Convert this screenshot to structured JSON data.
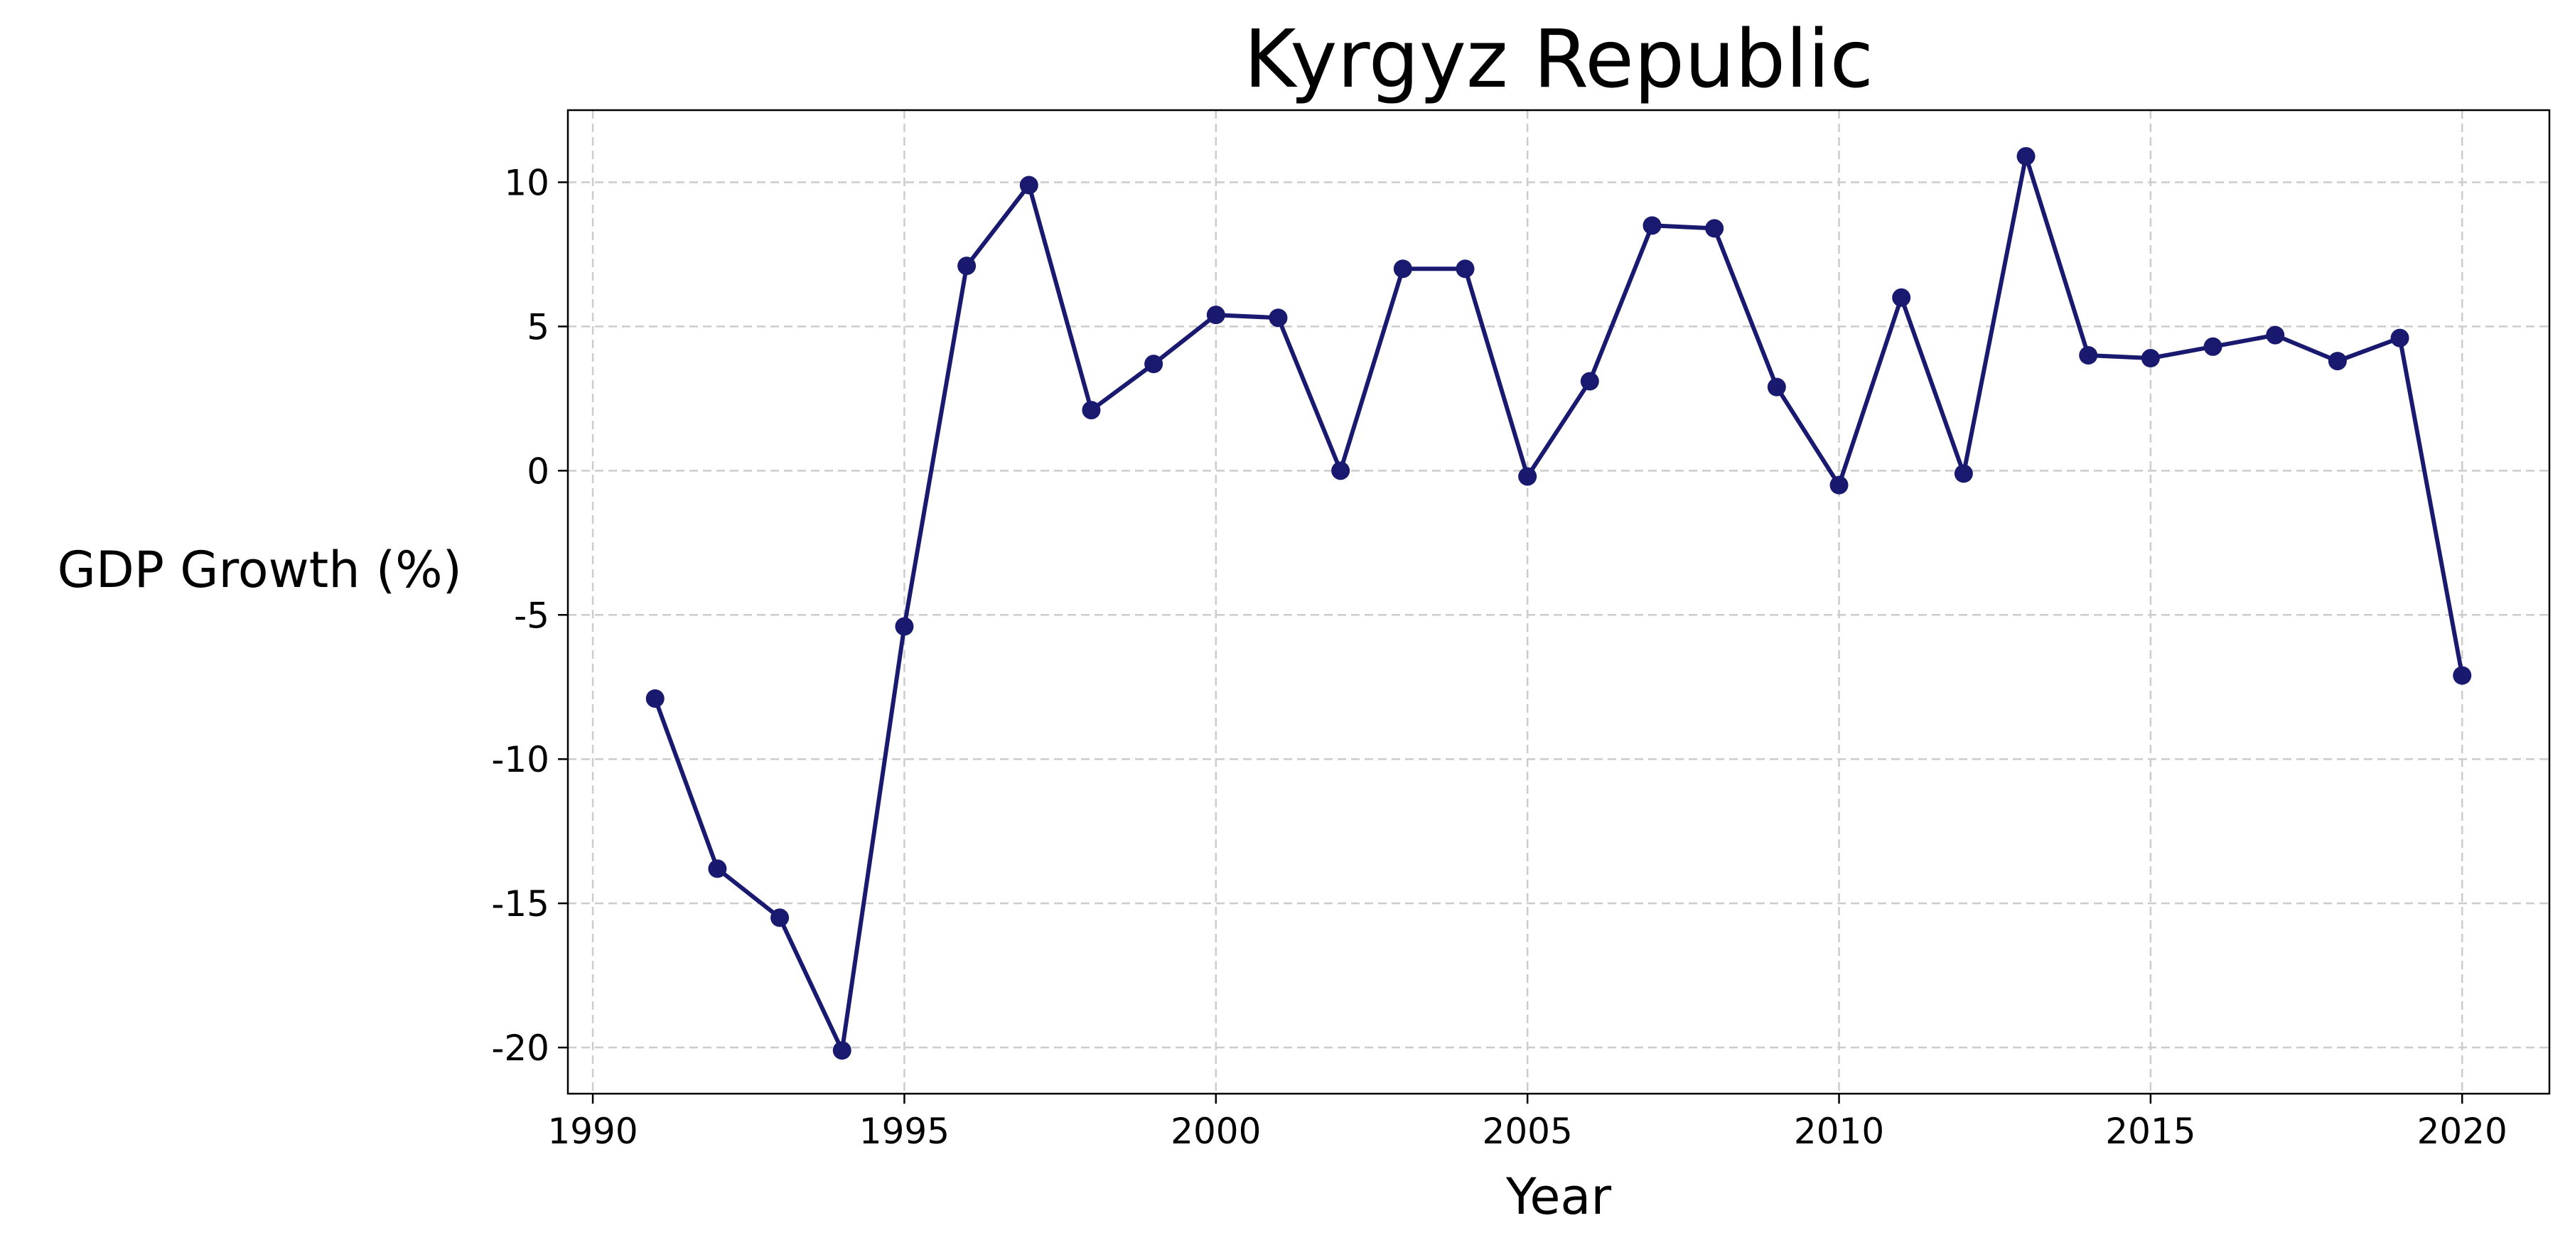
{
  "chart_data": {
    "type": "line",
    "title": "Kyrgyz Republic",
    "xlabel": "Year",
    "ylabel": "GDP Growth (%)",
    "xlim": [
      1989.6,
      2021.4
    ],
    "ylim": [
      -21.6,
      12.5
    ],
    "xticks": [
      1990,
      1995,
      2000,
      2005,
      2010,
      2015,
      2020
    ],
    "yticks": [
      -20,
      -15,
      -10,
      -5,
      0,
      5,
      10
    ],
    "grid": true,
    "legend": "none",
    "series": [
      {
        "color": "#191970",
        "marker": "circle",
        "x": [
          1991,
          1992,
          1993,
          1994,
          1995,
          1996,
          1997,
          1998,
          1999,
          2000,
          2001,
          2002,
          2003,
          2004,
          2005,
          2006,
          2007,
          2008,
          2009,
          2010,
          2011,
          2012,
          2013,
          2014,
          2015,
          2016,
          2017,
          2018,
          2019,
          2020
        ],
        "y": [
          -7.9,
          -13.8,
          -15.5,
          -20.1,
          -5.4,
          7.1,
          9.9,
          2.1,
          3.7,
          5.4,
          5.3,
          0.0,
          7.0,
          7.0,
          -0.2,
          3.1,
          8.5,
          8.4,
          2.9,
          -0.5,
          6.0,
          -0.1,
          10.9,
          4.0,
          3.9,
          4.3,
          4.7,
          3.8,
          4.6,
          -7.1
        ]
      }
    ]
  }
}
